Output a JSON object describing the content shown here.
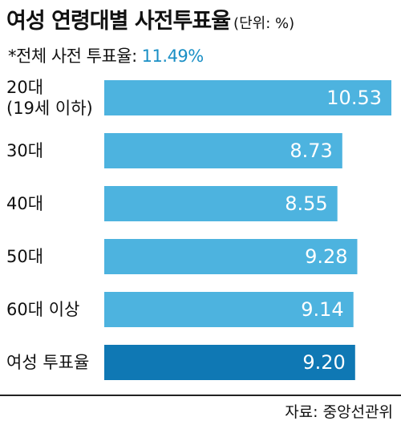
{
  "title": "여성 연령대별 사전투표율",
  "unit": "(단위: %)",
  "subtitle_label": "*전체 사전 투표율:",
  "subtitle_value": "11.49%",
  "source": "자료: 중앙선관위",
  "colors": {
    "bar": "#4db3df",
    "highlight_bar": "#0f78b4",
    "accent_text": "#1a8fc5"
  },
  "chart_data": {
    "type": "bar",
    "orientation": "horizontal",
    "title": "여성 연령대별 사전투표율",
    "unit": "%",
    "categories": [
      [
        "20대",
        "(19세 이하)"
      ],
      [
        "30대"
      ],
      [
        "40대"
      ],
      [
        "50대"
      ],
      [
        "60대 이상"
      ],
      [
        "여성 투표율"
      ]
    ],
    "values": [
      10.53,
      8.73,
      8.55,
      9.28,
      9.14,
      9.2
    ],
    "value_labels": [
      "10.53",
      "8.73",
      "8.55",
      "9.28",
      "9.14",
      "9.20"
    ],
    "highlight_index": 5,
    "xlim": [
      0,
      10.53
    ]
  }
}
